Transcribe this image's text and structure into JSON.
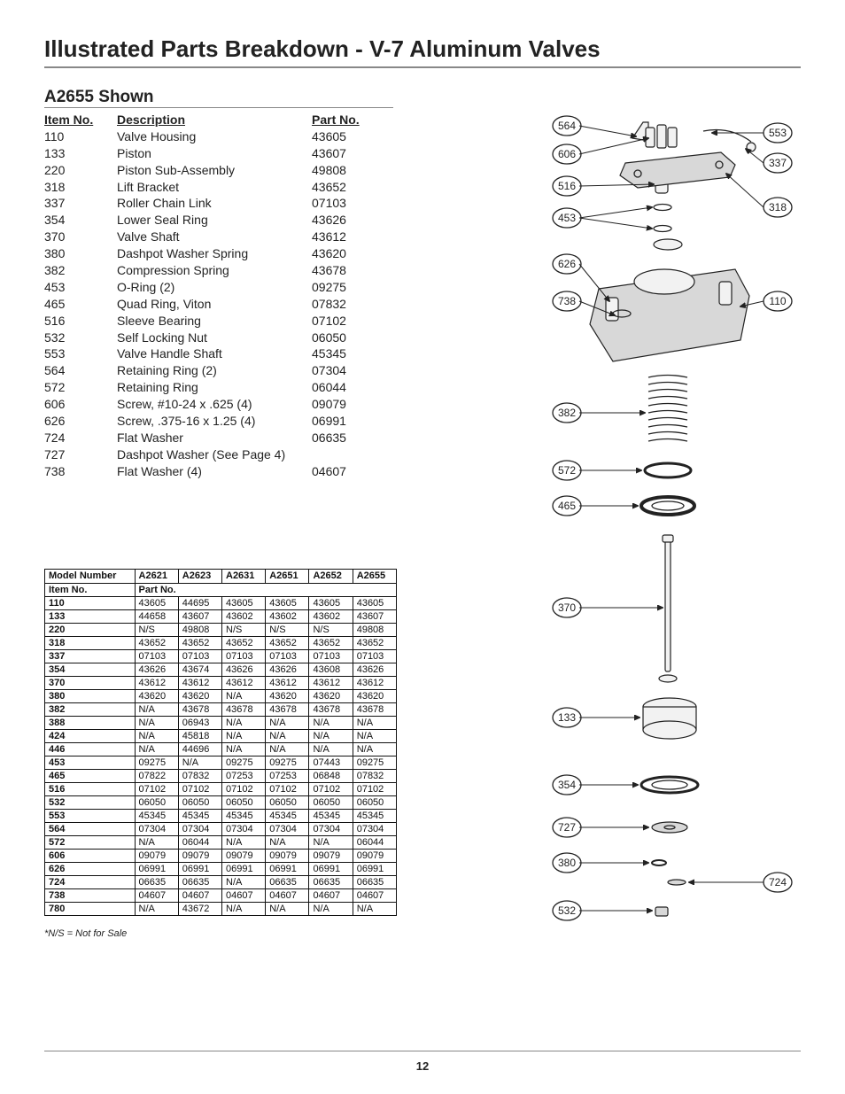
{
  "title": "Illustrated Parts Breakdown - V-7 Aluminum Valves",
  "subtitle": "A2655 Shown",
  "parts_head": {
    "item": "Item No.",
    "desc": "Description",
    "part": "Part No."
  },
  "parts": [
    {
      "item": "110",
      "desc": "Valve Housing",
      "part": "43605"
    },
    {
      "item": "133",
      "desc": "Piston",
      "part": "43607"
    },
    {
      "item": "220",
      "desc": "Piston Sub-Assembly",
      "part": "49808"
    },
    {
      "item": "318",
      "desc": "Lift Bracket",
      "part": "43652"
    },
    {
      "item": "337",
      "desc": "Roller Chain Link",
      "part": "07103"
    },
    {
      "item": "354",
      "desc": "Lower Seal Ring",
      "part": "43626"
    },
    {
      "item": "370",
      "desc": "Valve Shaft",
      "part": "43612"
    },
    {
      "item": "380",
      "desc": "Dashpot Washer Spring",
      "part": "43620"
    },
    {
      "item": "382",
      "desc": "Compression Spring",
      "part": "43678"
    },
    {
      "item": "453",
      "desc": "O-Ring (2)",
      "part": "09275"
    },
    {
      "item": "465",
      "desc": "Quad Ring, Viton",
      "part": "07832"
    },
    {
      "item": "516",
      "desc": "Sleeve Bearing",
      "part": "07102"
    },
    {
      "item": "532",
      "desc": "Self Locking Nut",
      "part": "06050"
    },
    {
      "item": "553",
      "desc": "Valve Handle Shaft",
      "part": "45345"
    },
    {
      "item": "564",
      "desc": "Retaining Ring (2)",
      "part": "07304"
    },
    {
      "item": "572",
      "desc": "Retaining Ring",
      "part": "06044"
    },
    {
      "item": "606",
      "desc": "Screw, #10-24 x .625 (4)",
      "part": "09079"
    },
    {
      "item": "626",
      "desc": "Screw, .375-16 x 1.25 (4)",
      "part": "06991"
    },
    {
      "item": "724",
      "desc": "Flat Washer",
      "part": "06635"
    },
    {
      "item": "727",
      "desc": "Dashpot Washer (See Page 4)",
      "part": ""
    },
    {
      "item": "738",
      "desc": "Flat Washer (4)",
      "part": "04607"
    }
  ],
  "xref": {
    "model_label": "Model Number",
    "models": [
      "A2621",
      "A2623",
      "A2631",
      "A2651",
      "A2652",
      "A2655"
    ],
    "itemno_label": "Item No.",
    "partno_label": "Part No.",
    "rows": [
      [
        "110",
        "43605",
        "44695",
        "43605",
        "43605",
        "43605",
        "43605"
      ],
      [
        "133",
        "44658",
        "43607",
        "43602",
        "43602",
        "43602",
        "43607"
      ],
      [
        "220",
        "N/S",
        "49808",
        "N/S",
        "N/S",
        "N/S",
        "49808"
      ],
      [
        "318",
        "43652",
        "43652",
        "43652",
        "43652",
        "43652",
        "43652"
      ],
      [
        "337",
        "07103",
        "07103",
        "07103",
        "07103",
        "07103",
        "07103"
      ],
      [
        "354",
        "43626",
        "43674",
        "43626",
        "43626",
        "43608",
        "43626"
      ],
      [
        "370",
        "43612",
        "43612",
        "43612",
        "43612",
        "43612",
        "43612"
      ],
      [
        "380",
        "43620",
        "43620",
        "N/A",
        "43620",
        "43620",
        "43620"
      ],
      [
        "382",
        "N/A",
        "43678",
        "43678",
        "43678",
        "43678",
        "43678"
      ],
      [
        "388",
        "N/A",
        "06943",
        "N/A",
        "N/A",
        "N/A",
        "N/A"
      ],
      [
        "424",
        "N/A",
        "45818",
        "N/A",
        "N/A",
        "N/A",
        "N/A"
      ],
      [
        "446",
        "N/A",
        "44696",
        "N/A",
        "N/A",
        "N/A",
        "N/A"
      ],
      [
        "453",
        "09275",
        "N/A",
        "09275",
        "09275",
        "07443",
        "09275"
      ],
      [
        "465",
        "07822",
        "07832",
        "07253",
        "07253",
        "06848",
        "07832"
      ],
      [
        "516",
        "07102",
        "07102",
        "07102",
        "07102",
        "07102",
        "07102"
      ],
      [
        "532",
        "06050",
        "06050",
        "06050",
        "06050",
        "06050",
        "06050"
      ],
      [
        "553",
        "45345",
        "45345",
        "45345",
        "45345",
        "45345",
        "45345"
      ],
      [
        "564",
        "07304",
        "07304",
        "07304",
        "07304",
        "07304",
        "07304"
      ],
      [
        "572",
        "N/A",
        "06044",
        "N/A",
        "N/A",
        "N/A",
        "06044"
      ],
      [
        "606",
        "09079",
        "09079",
        "09079",
        "09079",
        "09079",
        "09079"
      ],
      [
        "626",
        "06991",
        "06991",
        "06991",
        "06991",
        "06991",
        "06991"
      ],
      [
        "724",
        "06635",
        "06635",
        "N/A",
        "06635",
        "06635",
        "06635"
      ],
      [
        "738",
        "04607",
        "04607",
        "04607",
        "04607",
        "04607",
        "04607"
      ],
      [
        "780",
        "N/A",
        "43672",
        "N/A",
        "N/A",
        "N/A",
        "N/A"
      ]
    ]
  },
  "footnote": "*N/S = Not for Sale",
  "page_number": "12",
  "callouts": {
    "564": "564",
    "553": "553",
    "606": "606",
    "337": "337",
    "516": "516",
    "318": "318",
    "453": "453",
    "626": "626",
    "738": "738",
    "110": "110",
    "382": "382",
    "572": "572",
    "465": "465",
    "370": "370",
    "133": "133",
    "354": "354",
    "727": "727",
    "380": "380",
    "724": "724",
    "532": "532"
  },
  "diagram_style": {
    "callout_radius": 14,
    "callout_stroke": "#222",
    "shape_fill": "#d8d8d8"
  }
}
